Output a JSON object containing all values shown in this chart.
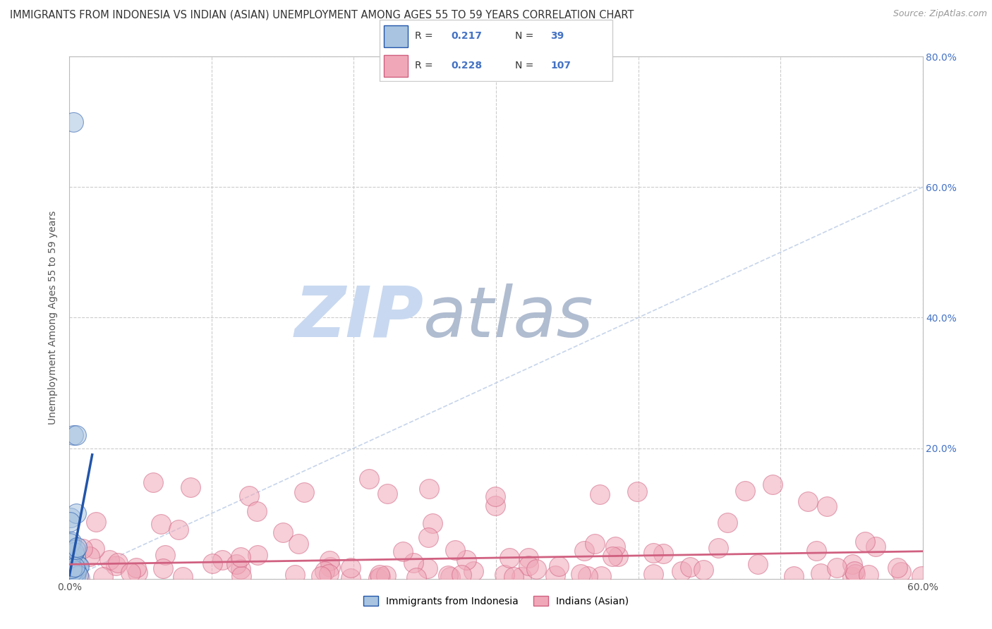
{
  "title": "IMMIGRANTS FROM INDONESIA VS INDIAN (ASIAN) UNEMPLOYMENT AMONG AGES 55 TO 59 YEARS CORRELATION CHART",
  "source": "Source: ZipAtlas.com",
  "ylabel": "Unemployment Among Ages 55 to 59 years",
  "xlim": [
    0.0,
    0.6
  ],
  "ylim": [
    0.0,
    0.8
  ],
  "xticks": [
    0.0,
    0.1,
    0.2,
    0.3,
    0.4,
    0.5,
    0.6
  ],
  "yticks": [
    0.0,
    0.2,
    0.4,
    0.6,
    0.8
  ],
  "xtick_labels": [
    "0.0%",
    "",
    "",
    "",
    "",
    "",
    "60.0%"
  ],
  "ytick_labels_right": [
    "",
    "20.0%",
    "40.0%",
    "60.0%",
    "80.0%"
  ],
  "color_blue": "#a8c4e0",
  "color_pink": "#f0a8b8",
  "color_blue_line": "#2255aa",
  "color_pink_line": "#d06080",
  "color_ref_line": "#c0d0e8",
  "watermark_zip": "ZIP",
  "watermark_atlas": "atlas",
  "watermark_color_zip": "#c8d8f0",
  "watermark_color_atlas": "#b0c0d8"
}
